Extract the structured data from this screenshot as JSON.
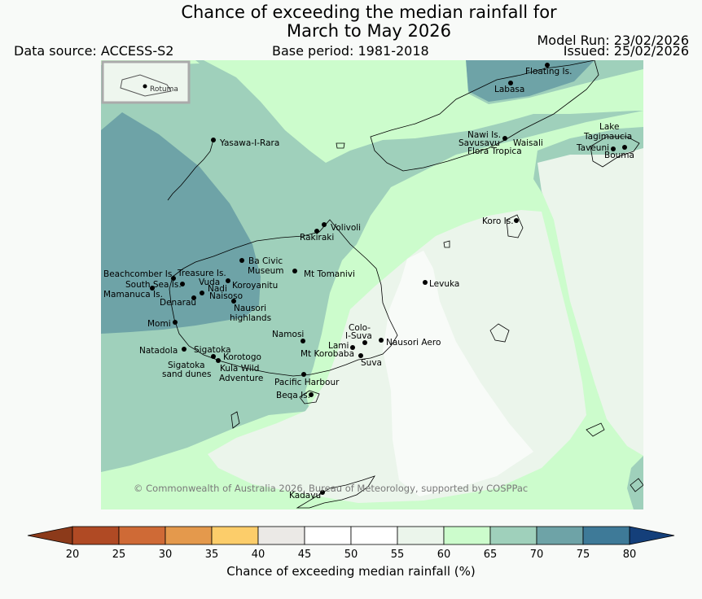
{
  "header": {
    "title_line1": "Chance of exceeding the median rainfall for",
    "title_line2": "March to May 2026",
    "data_source": "Data source: ACCESS-S2",
    "base_period": "Base period: 1981-2018",
    "model_run": "Model Run: 23/02/2026",
    "issued": "Issued: 25/02/2026"
  },
  "map": {
    "inset_label": "Rotuma",
    "copyright": "© Commonwealth of Australia 2026, Bureau of Meteorology, supported by COSPPac",
    "places": [
      {
        "id": "floating-is",
        "label": "Floating Is."
      },
      {
        "id": "labasa",
        "label": "Labasa"
      },
      {
        "id": "yasawa",
        "label": "Yasawa-I-Rara"
      },
      {
        "id": "nawi",
        "label": "Nawi Is."
      },
      {
        "id": "savusavu",
        "label": "Savusavu"
      },
      {
        "id": "waisali",
        "label": "Waisali"
      },
      {
        "id": "flora",
        "label": "Flora Tropica"
      },
      {
        "id": "lake-tagimaucia",
        "label": "Lake"
      },
      {
        "id": "lake-tagimaucia-2",
        "label": "Tagimaucia"
      },
      {
        "id": "taveuni",
        "label": "Taveuni"
      },
      {
        "id": "bouma",
        "label": "Bouma"
      },
      {
        "id": "volivoli",
        "label": "Volivoli"
      },
      {
        "id": "rakiraki",
        "label": "Rakiraki"
      },
      {
        "id": "koro",
        "label": "Koro Is."
      },
      {
        "id": "ba-civic",
        "label": "Ba Civic"
      },
      {
        "id": "ba-museum",
        "label": "Museum"
      },
      {
        "id": "mt-tomanivi",
        "label": "Mt Tomanivi"
      },
      {
        "id": "beachcomber",
        "label": "Beachcomber Is."
      },
      {
        "id": "treasure",
        "label": "Treasure Is."
      },
      {
        "id": "south-sea",
        "label": "South Sea Is."
      },
      {
        "id": "vuda",
        "label": "Vuda"
      },
      {
        "id": "koroyanitu",
        "label": "Koroyanitu"
      },
      {
        "id": "nadi",
        "label": "Nadi"
      },
      {
        "id": "mamanuca",
        "label": "Mamanuca Is."
      },
      {
        "id": "naisoso",
        "label": "Naisoso"
      },
      {
        "id": "denarau",
        "label": "Denarau"
      },
      {
        "id": "nausori-highlands",
        "label": "Nausori"
      },
      {
        "id": "nausori-highlands-2",
        "label": "highlands"
      },
      {
        "id": "levuka",
        "label": "Levuka"
      },
      {
        "id": "momi",
        "label": "Momi"
      },
      {
        "id": "namosi",
        "label": "Namosi"
      },
      {
        "id": "colo-i-suva",
        "label": "Colo-"
      },
      {
        "id": "colo-i-suva-2",
        "label": "I-Suva"
      },
      {
        "id": "nausori-aero",
        "label": "Nausori Aero"
      },
      {
        "id": "natadola",
        "label": "Natadola"
      },
      {
        "id": "sigatoka",
        "label": "Sigatoka"
      },
      {
        "id": "lami",
        "label": "Lami"
      },
      {
        "id": "mt-korobaba",
        "label": "Mt Korobaba"
      },
      {
        "id": "korotogo",
        "label": "Korotogo"
      },
      {
        "id": "suva",
        "label": "Suva"
      },
      {
        "id": "sigatoka-dunes",
        "label": "Sigatoka"
      },
      {
        "id": "sigatoka-dunes-2",
        "label": "sand dunes"
      },
      {
        "id": "kula",
        "label": "Kula Wild"
      },
      {
        "id": "kula-2",
        "label": "Adventure"
      },
      {
        "id": "pacific-harbour",
        "label": "Pacific Harbour"
      },
      {
        "id": "beqa",
        "label": "Beqa Is."
      },
      {
        "id": "kadavu",
        "label": "Kadavu"
      }
    ]
  },
  "colorbar": {
    "title": "Chance of exceeding median rainfall (%)",
    "ticks": [
      "20",
      "25",
      "30",
      "35",
      "40",
      "45",
      "50",
      "55",
      "60",
      "65",
      "70",
      "75",
      "80"
    ],
    "colors": {
      "below_20": "#8c3a1a",
      "20-25": "#b04a24",
      "25-30": "#cf6a36",
      "30-35": "#e4994c",
      "35-40": "#fccd6a",
      "40-45": "#ebe9e6",
      "45-50": "#ffffff",
      "50-55": "#ffffff",
      "55-60": "#ebf5eb",
      "60-65": "#ccfccc",
      "65-70": "#9fd0bb",
      "70-75": "#6ea3a7",
      "75-80": "#3e7a98",
      "above_80": "#143f7a"
    }
  }
}
